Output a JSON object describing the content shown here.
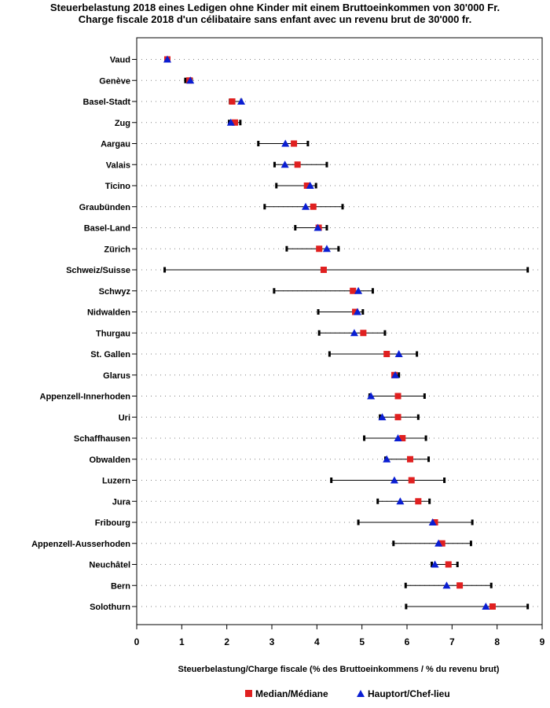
{
  "chart_data": {
    "type": "dot-range",
    "title_line1": "Steuerbelastung 2018 eines Ledigen ohne Kinder mit einem Bruttoeinkommen von 30'000 Fr.",
    "title_line2": "Charge fiscale 2018 d'un célibataire sans enfant avec un revenu brut de 30'000 fr.",
    "xlabel": "Steuerbelastung/Charge fiscale (% des Bruttoeinkommens / % du revenu brut)",
    "xlim": [
      0,
      9
    ],
    "xticks": [
      0,
      1,
      2,
      3,
      4,
      5,
      6,
      7,
      8,
      9
    ],
    "legend": {
      "median_label": "Median/Médiane",
      "capital_label": "Hauptort/Chef-lieu"
    },
    "colors": {
      "median": "#e02020",
      "capital": "#0a1ed2",
      "range": "#000000",
      "grid": "#808080"
    },
    "rows": [
      {
        "name": "Vaud",
        "min": 0.65,
        "max": 0.72,
        "median": 0.68,
        "capital": 0.68
      },
      {
        "name": "Genève",
        "min": 1.08,
        "max": 1.22,
        "median": 1.17,
        "capital": 1.19
      },
      {
        "name": "Basel-Stadt",
        "min": 2.07,
        "max": 2.32,
        "median": 2.12,
        "capital": 2.32
      },
      {
        "name": "Zug",
        "min": 2.05,
        "max": 2.3,
        "median": 2.18,
        "capital": 2.09
      },
      {
        "name": "Aargau",
        "min": 2.7,
        "max": 3.8,
        "median": 3.49,
        "capital": 3.3
      },
      {
        "name": "Valais",
        "min": 3.06,
        "max": 4.22,
        "median": 3.57,
        "capital": 3.29
      },
      {
        "name": "Ticino",
        "min": 3.1,
        "max": 3.98,
        "median": 3.78,
        "capital": 3.85
      },
      {
        "name": "Graubünden",
        "min": 2.84,
        "max": 4.57,
        "median": 3.92,
        "capital": 3.75
      },
      {
        "name": "Basel-Land",
        "min": 3.52,
        "max": 4.22,
        "median": 4.04,
        "capital": 4.02
      },
      {
        "name": "Zürich",
        "min": 3.33,
        "max": 4.48,
        "median": 4.05,
        "capital": 4.22
      },
      {
        "name": "Schweiz/Suisse",
        "min": 0.62,
        "max": 8.68,
        "median": 4.15,
        "capital": null
      },
      {
        "name": "Schwyz",
        "min": 3.05,
        "max": 5.24,
        "median": 4.8,
        "capital": 4.92
      },
      {
        "name": "Nidwalden",
        "min": 4.03,
        "max": 5.02,
        "median": 4.85,
        "capital": 4.9
      },
      {
        "name": "Thurgau",
        "min": 4.05,
        "max": 5.51,
        "median": 5.03,
        "capital": 4.83
      },
      {
        "name": "St. Gallen",
        "min": 4.28,
        "max": 6.22,
        "median": 5.55,
        "capital": 5.82
      },
      {
        "name": "Glarus",
        "min": 5.68,
        "max": 5.82,
        "median": 5.72,
        "capital": 5.74
      },
      {
        "name": "Appenzell-Innerhoden",
        "min": 5.17,
        "max": 6.39,
        "median": 5.8,
        "capital": 5.2
      },
      {
        "name": "Uri",
        "min": 5.4,
        "max": 6.25,
        "median": 5.8,
        "capital": 5.45
      },
      {
        "name": "Schaffhausen",
        "min": 5.05,
        "max": 6.42,
        "median": 5.9,
        "capital": 5.8
      },
      {
        "name": "Obwalden",
        "min": 5.52,
        "max": 6.48,
        "median": 6.07,
        "capital": 5.55
      },
      {
        "name": "Luzern",
        "min": 4.32,
        "max": 6.83,
        "median": 6.1,
        "capital": 5.72
      },
      {
        "name": "Jura",
        "min": 5.35,
        "max": 6.5,
        "median": 6.25,
        "capital": 5.85
      },
      {
        "name": "Fribourg",
        "min": 4.92,
        "max": 7.45,
        "median": 6.62,
        "capital": 6.57
      },
      {
        "name": "Appenzell-Ausserhoden",
        "min": 5.7,
        "max": 7.42,
        "median": 6.78,
        "capital": 6.7
      },
      {
        "name": "Neuchâtel",
        "min": 6.55,
        "max": 7.12,
        "median": 6.92,
        "capital": 6.62
      },
      {
        "name": "Bern",
        "min": 5.97,
        "max": 7.87,
        "median": 7.17,
        "capital": 6.88
      },
      {
        "name": "Solothurn",
        "min": 5.98,
        "max": 8.68,
        "median": 7.9,
        "capital": 7.75
      }
    ]
  }
}
